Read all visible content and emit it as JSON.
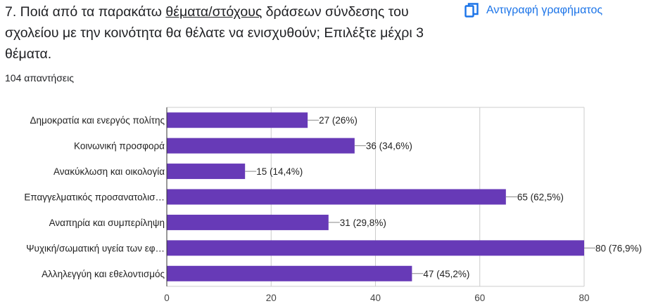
{
  "question": {
    "prefix": "7. Ποιά από τα παρακάτω ",
    "underlined": "θέματα/στόχους",
    "suffix": " δράσεων σύνδεσης του σχολείου με την κοινότητα θα θέλατε να ενισχυθούν; Επιλέξτε μέχρι 3 θέματα."
  },
  "copy_button": {
    "label": "Αντιγραφή γραφήματος",
    "icon": "copy-icon",
    "color": "#1a73e8"
  },
  "responses_text": "104 απαντήσεις",
  "chart_data": {
    "type": "bar",
    "orientation": "horizontal",
    "categories": [
      "Δημοκρατία και ενεργός πολίτης",
      "Κοινωνική προσφορά",
      "Ανακύκλωση και οικολογία",
      "Επαγγελματικός προσανατολισ…",
      "Αναπηρία και συμπερίληψη",
      "Ψυχική/σωματική υγεία των εφ…",
      "Αλληλεγγύη και εθελοντισμός"
    ],
    "values": [
      27,
      36,
      15,
      65,
      31,
      80,
      47
    ],
    "value_labels": [
      "27 (26%)",
      "36 (34,6%)",
      "15 (14,4%)",
      "65 (62,5%)",
      "31 (29,8%)",
      "80 (76,9%)",
      "47 (45,2%)"
    ],
    "xlim": [
      0,
      80
    ],
    "xticks": [
      0,
      20,
      40,
      60,
      80
    ],
    "grid": true,
    "bar_color": "#673ab7"
  }
}
